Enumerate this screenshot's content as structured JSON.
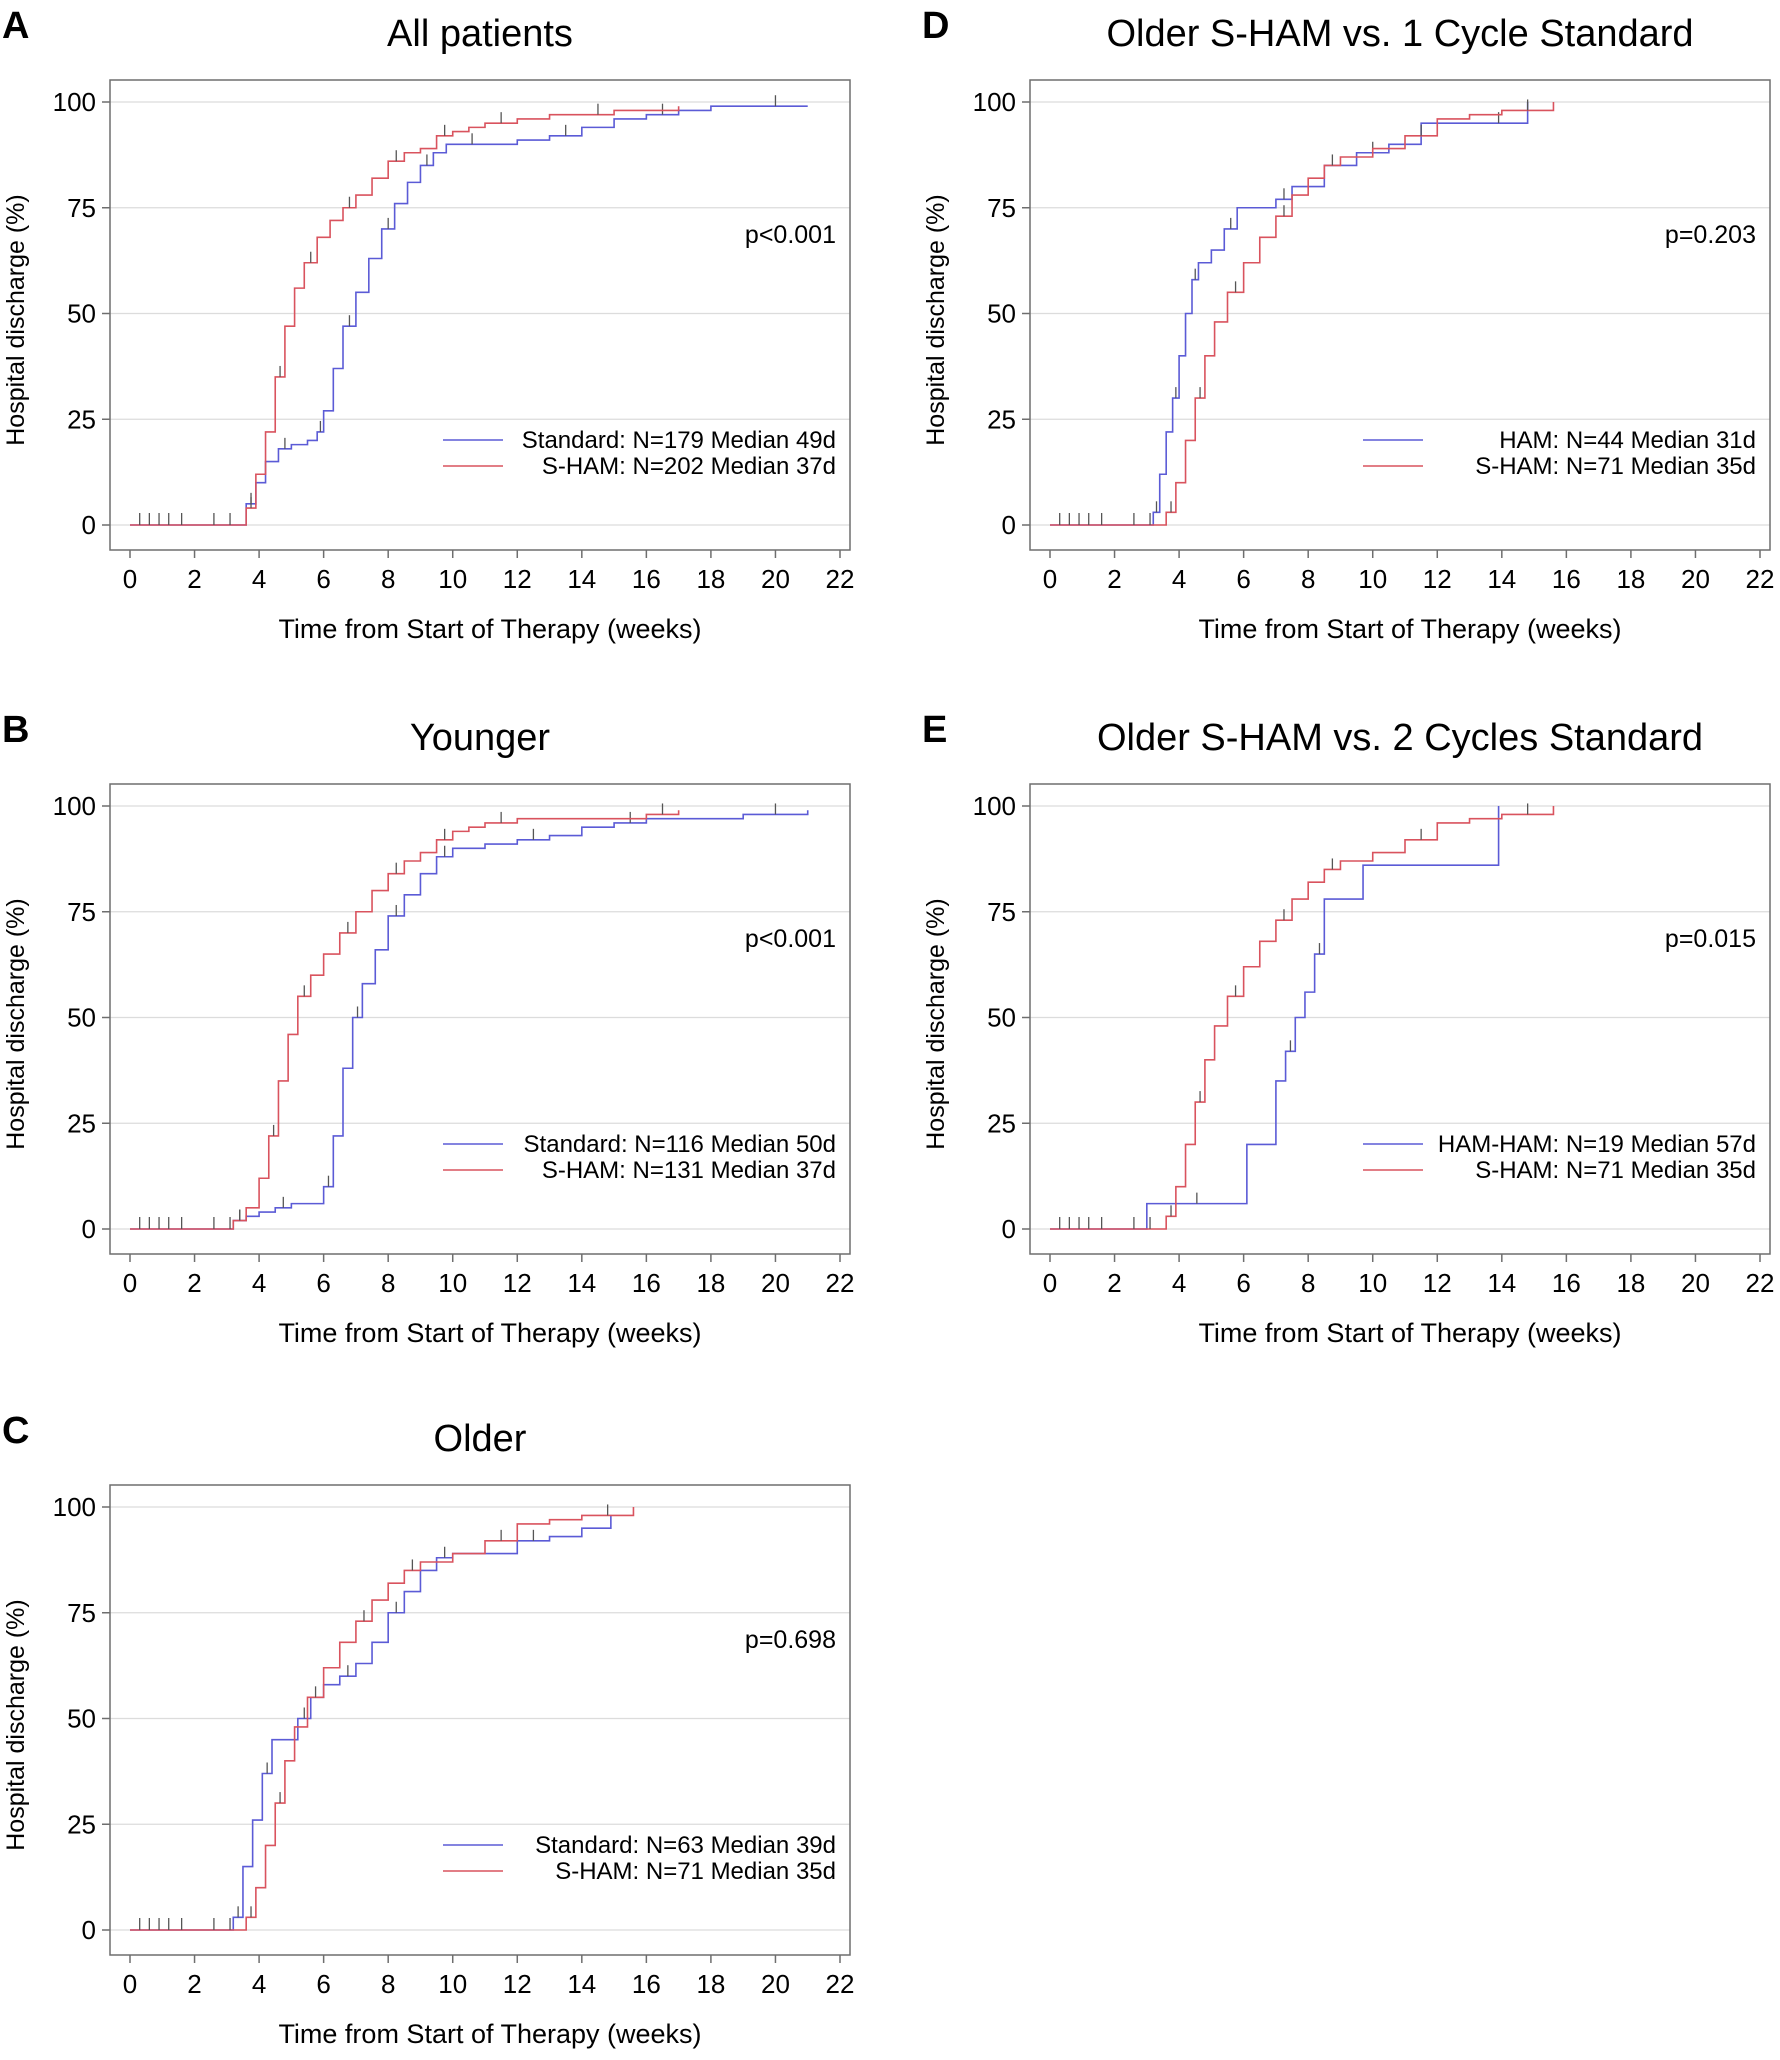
{
  "colors": {
    "blue": "#5b5bd6",
    "red": "#d9535e",
    "grid": "#dcdcdc",
    "frame": "#6e6e6e",
    "tick": "#555555"
  },
  "chart_data": [
    {
      "id": "A",
      "type": "line",
      "letter": "A",
      "title": "All patients",
      "xlabel": "Time from Start of Therapy (weeks)",
      "ylabel": "Hospital discharge (%)",
      "xlim": [
        0,
        22
      ],
      "ylim": [
        0,
        100
      ],
      "xticks": [
        "0",
        "2",
        "4",
        "6",
        "8",
        "10",
        "12",
        "14",
        "16",
        "18",
        "20",
        "22"
      ],
      "yticks": [
        "0",
        "25",
        "50",
        "75",
        "100"
      ],
      "pvalue": "p<0.001",
      "series": [
        {
          "name": "Standard: N=179 Median 49d",
          "color": "blue",
          "x": [
            0,
            3.6,
            3.9,
            4.2,
            4.6,
            5.0,
            5.5,
            5.8,
            6.0,
            6.3,
            6.6,
            7.0,
            7.4,
            7.8,
            8.2,
            8.6,
            9.0,
            9.4,
            9.8,
            10.2,
            11.0,
            12.0,
            13.0,
            14.0,
            15.0,
            16.0,
            17.0,
            18.0,
            19.0,
            21.0
          ],
          "y": [
            0,
            5,
            10,
            15,
            18,
            19,
            20,
            22,
            27,
            37,
            47,
            55,
            63,
            70,
            76,
            81,
            85,
            88,
            90,
            90,
            90,
            91,
            92,
            94,
            96,
            97,
            98,
            99,
            99,
            99
          ]
        },
        {
          "name": "S-HAM: N=202 Median 37d",
          "color": "red",
          "x": [
            0,
            3.6,
            3.9,
            4.2,
            4.5,
            4.8,
            5.1,
            5.4,
            5.8,
            6.2,
            6.6,
            7.0,
            7.5,
            8.0,
            8.5,
            9.0,
            9.5,
            10.0,
            10.5,
            11.0,
            12.0,
            13.0,
            14.0,
            15.0,
            16.0,
            17.0
          ],
          "y": [
            0,
            4,
            12,
            22,
            35,
            47,
            56,
            62,
            68,
            72,
            75,
            78,
            82,
            86,
            88,
            89,
            92,
            93,
            94,
            95,
            96,
            97,
            97,
            98,
            98,
            99
          ]
        }
      ]
    },
    {
      "id": "D",
      "type": "line",
      "letter": "D",
      "title": "Older S-HAM vs. 1 Cycle Standard",
      "xlabel": "Time from Start of Therapy (weeks)",
      "ylabel": "Hospital discharge (%)",
      "xlim": [
        0,
        22
      ],
      "ylim": [
        0,
        100
      ],
      "xticks": [
        "0",
        "2",
        "4",
        "6",
        "8",
        "10",
        "12",
        "14",
        "16",
        "18",
        "20",
        "22"
      ],
      "yticks": [
        "0",
        "25",
        "50",
        "75",
        "100"
      ],
      "pvalue": "p=0.203",
      "series": [
        {
          "name": "HAM: N=44 Median 31d",
          "color": "blue",
          "x": [
            0,
            3.2,
            3.4,
            3.6,
            3.8,
            4.0,
            4.2,
            4.4,
            4.6,
            5.0,
            5.4,
            5.8,
            6.2,
            7.0,
            7.5,
            8.5,
            9.5,
            10.5,
            11.5,
            13.0,
            14.8
          ],
          "y": [
            0,
            3,
            12,
            22,
            30,
            40,
            50,
            58,
            62,
            65,
            70,
            75,
            75,
            77,
            80,
            85,
            88,
            90,
            95,
            95,
            100
          ]
        },
        {
          "name": "S-HAM: N=71 Median 35d",
          "color": "red",
          "x": [
            0,
            3.6,
            3.9,
            4.2,
            4.5,
            4.8,
            5.1,
            5.5,
            6.0,
            6.5,
            7.0,
            7.5,
            8.0,
            8.5,
            9.0,
            10.0,
            11.0,
            12.0,
            13.0,
            14.0,
            15.6
          ],
          "y": [
            0,
            3,
            10,
            20,
            30,
            40,
            48,
            55,
            62,
            68,
            73,
            78,
            82,
            85,
            87,
            89,
            92,
            96,
            97,
            98,
            100
          ]
        }
      ]
    },
    {
      "id": "B",
      "type": "line",
      "letter": "B",
      "title": "Younger",
      "xlabel": "Time from Start of Therapy (weeks)",
      "ylabel": "Hospital discharge (%)",
      "xlim": [
        0,
        22
      ],
      "ylim": [
        0,
        100
      ],
      "xticks": [
        "0",
        "2",
        "4",
        "6",
        "8",
        "10",
        "12",
        "14",
        "16",
        "18",
        "20",
        "22"
      ],
      "yticks": [
        "0",
        "25",
        "50",
        "75",
        "100"
      ],
      "pvalue": "p<0.001",
      "series": [
        {
          "name": "Standard: N=116 Median 50d",
          "color": "blue",
          "x": [
            0,
            3.2,
            3.6,
            4.0,
            4.5,
            5.0,
            5.5,
            6.0,
            6.3,
            6.6,
            6.9,
            7.2,
            7.6,
            8.0,
            8.5,
            9.0,
            9.5,
            10.0,
            11.0,
            12.0,
            13.0,
            14.0,
            15.0,
            16.0,
            17.0,
            19.0,
            21.0
          ],
          "y": [
            0,
            2,
            3,
            4,
            5,
            6,
            6,
            10,
            22,
            38,
            50,
            58,
            66,
            74,
            79,
            84,
            88,
            90,
            91,
            92,
            93,
            95,
            96,
            97,
            97,
            98,
            99
          ]
        },
        {
          "name": "S-HAM: N=131 Median 37d",
          "color": "red",
          "x": [
            0,
            3.2,
            3.6,
            4.0,
            4.3,
            4.6,
            4.9,
            5.2,
            5.6,
            6.0,
            6.5,
            7.0,
            7.5,
            8.0,
            8.5,
            9.0,
            9.5,
            10.0,
            10.5,
            11.0,
            12.0,
            14.0,
            16.0,
            17.0
          ],
          "y": [
            0,
            2,
            5,
            12,
            22,
            35,
            46,
            55,
            60,
            65,
            70,
            75,
            80,
            84,
            87,
            89,
            92,
            94,
            95,
            96,
            97,
            97,
            98,
            99
          ]
        }
      ]
    },
    {
      "id": "E",
      "type": "line",
      "letter": "E",
      "title": "Older S-HAM vs. 2 Cycles Standard",
      "xlabel": "Time from Start of Therapy (weeks)",
      "ylabel": "Hospital discharge (%)",
      "xlim": [
        0,
        22
      ],
      "ylim": [
        0,
        100
      ],
      "xticks": [
        "0",
        "2",
        "4",
        "6",
        "8",
        "10",
        "12",
        "14",
        "16",
        "18",
        "20",
        "22"
      ],
      "yticks": [
        "0",
        "25",
        "50",
        "75",
        "100"
      ],
      "pvalue": "p=0.015",
      "series": [
        {
          "name": "HAM-HAM: N=19 Median 57d",
          "color": "blue",
          "x": [
            0,
            3.0,
            6.1,
            7.0,
            7.3,
            7.6,
            7.9,
            8.2,
            8.5,
            9.7,
            13.9
          ],
          "y": [
            0,
            6,
            20,
            35,
            42,
            50,
            56,
            65,
            78,
            86,
            100
          ]
        },
        {
          "name": "S-HAM: N=71 Median 35d",
          "color": "red",
          "x": [
            0,
            3.6,
            3.9,
            4.2,
            4.5,
            4.8,
            5.1,
            5.5,
            6.0,
            6.5,
            7.0,
            7.5,
            8.0,
            8.5,
            9.0,
            10.0,
            11.0,
            12.0,
            13.0,
            14.0,
            15.6
          ],
          "y": [
            0,
            3,
            10,
            20,
            30,
            40,
            48,
            55,
            62,
            68,
            73,
            78,
            82,
            85,
            87,
            89,
            92,
            96,
            97,
            98,
            100
          ]
        }
      ]
    },
    {
      "id": "C",
      "type": "line",
      "letter": "C",
      "title": "Older",
      "xlabel": "Time from Start of Therapy (weeks)",
      "ylabel": "Hospital discharge (%)",
      "xlim": [
        0,
        22
      ],
      "ylim": [
        0,
        100
      ],
      "xticks": [
        "0",
        "2",
        "4",
        "6",
        "8",
        "10",
        "12",
        "14",
        "16",
        "18",
        "20",
        "22"
      ],
      "yticks": [
        "0",
        "25",
        "50",
        "75",
        "100"
      ],
      "pvalue": "p=0.698",
      "series": [
        {
          "name": "Standard: N=63 Median 39d",
          "color": "blue",
          "x": [
            0,
            3.2,
            3.5,
            3.8,
            4.1,
            4.4,
            4.8,
            5.2,
            5.6,
            6.0,
            6.5,
            7.0,
            7.5,
            8.0,
            8.5,
            9.0,
            9.5,
            10.0,
            11.0,
            12.0,
            13.0,
            14.0,
            14.9
          ],
          "y": [
            0,
            3,
            15,
            26,
            37,
            45,
            45,
            50,
            55,
            58,
            60,
            63,
            68,
            75,
            80,
            85,
            88,
            89,
            89,
            92,
            93,
            95,
            98
          ]
        },
        {
          "name": "S-HAM: N=71 Median 35d",
          "color": "red",
          "x": [
            0,
            3.6,
            3.9,
            4.2,
            4.5,
            4.8,
            5.1,
            5.5,
            6.0,
            6.5,
            7.0,
            7.5,
            8.0,
            8.5,
            9.0,
            10.0,
            11.0,
            12.0,
            13.0,
            14.0,
            15.6
          ],
          "y": [
            0,
            3,
            10,
            20,
            30,
            40,
            48,
            55,
            62,
            68,
            73,
            78,
            82,
            85,
            87,
            89,
            92,
            96,
            97,
            98,
            100
          ]
        }
      ]
    }
  ]
}
